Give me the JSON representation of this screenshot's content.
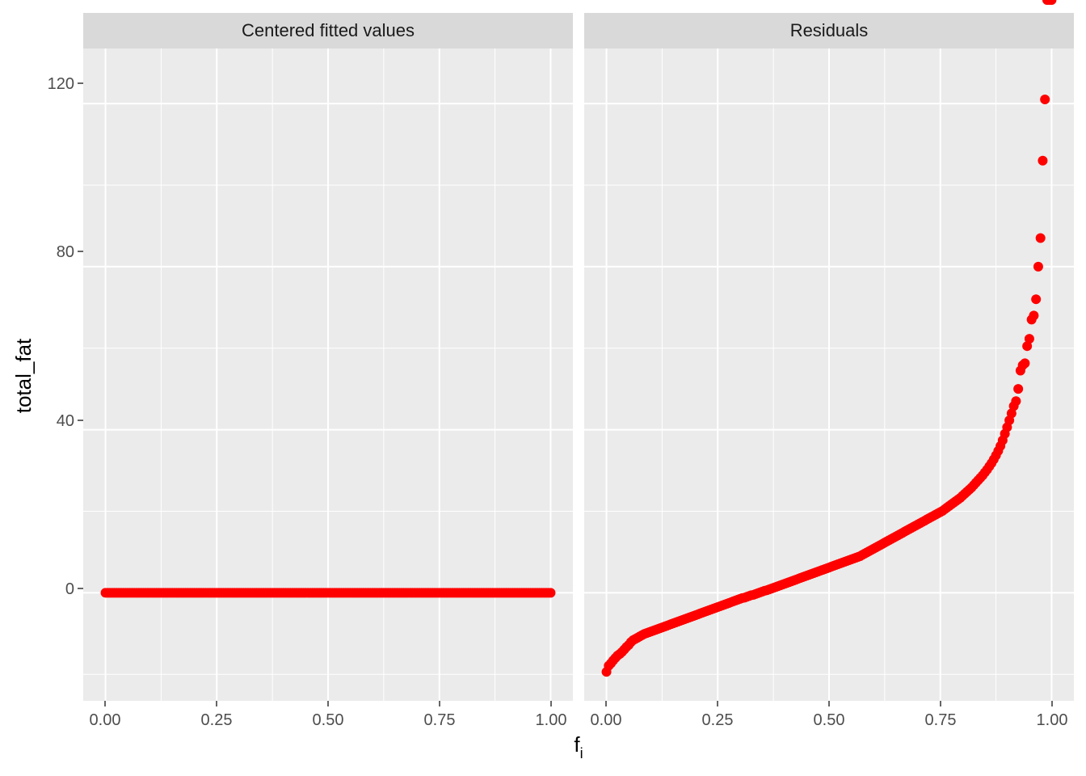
{
  "chart_data": {
    "type": "scatter",
    "facets": [
      "Centered fitted values",
      "Residuals"
    ],
    "xlabel": "f",
    "xlabel_subscript": "i",
    "ylabel": "total_fat",
    "x_ticks": [
      "0.00",
      "0.25",
      "0.50",
      "0.75",
      "1.00"
    ],
    "y_ticks": [
      "0",
      "40",
      "80",
      "120"
    ],
    "xlim": [
      -0.05,
      1.05
    ],
    "ylim": [
      -26.5,
      133.5
    ],
    "grid": true,
    "point_color": "#ff0000",
    "panel_background": "#ebebeb",
    "strip_background": "#d9d9d9",
    "series": [
      {
        "facet": "Centered fitted values",
        "f_values": [
          0.0,
          0.005,
          0.01,
          0.015,
          0.02,
          0.025,
          0.03,
          0.035,
          0.04,
          0.045,
          0.05,
          0.055,
          0.06,
          0.065,
          0.07,
          0.075,
          0.08,
          0.085,
          0.09,
          0.095,
          0.1,
          0.105,
          0.11,
          0.115,
          0.12,
          0.125,
          0.13,
          0.135,
          0.14,
          0.145,
          0.15,
          0.155,
          0.16,
          0.165,
          0.17,
          0.175,
          0.18,
          0.185,
          0.19,
          0.195,
          0.2,
          0.205,
          0.21,
          0.215,
          0.22,
          0.225,
          0.23,
          0.235,
          0.24,
          0.245,
          0.25,
          0.255,
          0.26,
          0.265,
          0.27,
          0.275,
          0.28,
          0.285,
          0.29,
          0.295,
          0.3,
          0.305,
          0.31,
          0.315,
          0.32,
          0.325,
          0.33,
          0.335,
          0.34,
          0.345,
          0.35,
          0.355,
          0.36,
          0.365,
          0.37,
          0.375,
          0.38,
          0.385,
          0.39,
          0.395,
          0.4,
          0.405,
          0.41,
          0.415,
          0.42,
          0.425,
          0.43,
          0.435,
          0.44,
          0.445,
          0.45,
          0.455,
          0.46,
          0.465,
          0.47,
          0.475,
          0.48,
          0.485,
          0.49,
          0.495,
          0.5,
          0.505,
          0.51,
          0.515,
          0.52,
          0.525,
          0.53,
          0.535,
          0.54,
          0.545,
          0.55,
          0.555,
          0.56,
          0.565,
          0.57,
          0.575,
          0.58,
          0.585,
          0.59,
          0.595,
          0.6,
          0.605,
          0.61,
          0.615,
          0.62,
          0.625,
          0.63,
          0.635,
          0.64,
          0.645,
          0.65,
          0.655,
          0.66,
          0.665,
          0.67,
          0.675,
          0.68,
          0.685,
          0.69,
          0.695,
          0.7,
          0.705,
          0.71,
          0.715,
          0.72,
          0.725,
          0.73,
          0.735,
          0.74,
          0.745,
          0.75,
          0.755,
          0.76,
          0.765,
          0.77,
          0.775,
          0.78,
          0.785,
          0.79,
          0.795,
          0.8,
          0.805,
          0.81,
          0.815,
          0.82,
          0.825,
          0.83,
          0.835,
          0.84,
          0.845,
          0.85,
          0.855,
          0.86,
          0.865,
          0.87,
          0.875,
          0.88,
          0.885,
          0.89,
          0.895,
          0.9,
          0.905,
          0.91,
          0.915,
          0.92,
          0.925,
          0.93,
          0.935,
          0.94,
          0.945,
          0.95,
          0.955,
          0.96,
          0.965,
          0.97,
          0.975,
          0.98,
          0.985,
          0.99,
          0.995,
          1.0
        ],
        "total_fat": [
          0,
          0,
          0,
          0,
          0,
          0,
          0,
          0,
          0,
          0,
          0,
          0,
          0,
          0,
          0,
          0,
          0,
          0,
          0,
          0,
          0,
          0,
          0,
          0,
          0,
          0,
          0,
          0,
          0,
          0,
          0,
          0,
          0,
          0,
          0,
          0,
          0,
          0,
          0,
          0,
          0,
          0,
          0,
          0,
          0,
          0,
          0,
          0,
          0,
          0,
          0,
          0,
          0,
          0,
          0,
          0,
          0,
          0,
          0,
          0,
          0,
          0,
          0,
          0,
          0,
          0,
          0,
          0,
          0,
          0,
          0,
          0,
          0,
          0,
          0,
          0,
          0,
          0,
          0,
          0,
          0,
          0,
          0,
          0,
          0,
          0,
          0,
          0,
          0,
          0,
          0,
          0,
          0,
          0,
          0,
          0,
          0,
          0,
          0,
          0,
          0,
          0,
          0,
          0,
          0,
          0,
          0,
          0,
          0,
          0,
          0,
          0,
          0,
          0,
          0,
          0,
          0,
          0,
          0,
          0,
          0,
          0,
          0,
          0,
          0,
          0,
          0,
          0,
          0,
          0,
          0,
          0,
          0,
          0,
          0,
          0,
          0,
          0,
          0,
          0,
          0,
          0,
          0,
          0,
          0,
          0,
          0,
          0,
          0,
          0,
          0,
          0,
          0,
          0,
          0,
          0,
          0,
          0,
          0,
          0,
          0,
          0,
          0,
          0,
          0,
          0,
          0,
          0,
          0,
          0,
          0,
          0,
          0,
          0,
          0,
          0,
          0,
          0,
          0,
          0,
          0,
          0,
          0,
          0,
          0,
          0,
          0,
          0,
          0,
          0,
          0,
          0,
          0,
          0,
          0,
          0,
          0,
          0,
          0,
          0,
          0
        ]
      },
      {
        "facet": "Residuals",
        "f_values": [
          0.0,
          0.005,
          0.01,
          0.015,
          0.02,
          0.025,
          0.03,
          0.035,
          0.04,
          0.045,
          0.05,
          0.055,
          0.06,
          0.065,
          0.07,
          0.075,
          0.08,
          0.085,
          0.09,
          0.095,
          0.1,
          0.105,
          0.11,
          0.115,
          0.12,
          0.125,
          0.13,
          0.135,
          0.14,
          0.145,
          0.15,
          0.155,
          0.16,
          0.165,
          0.17,
          0.175,
          0.18,
          0.185,
          0.19,
          0.195,
          0.2,
          0.205,
          0.21,
          0.215,
          0.22,
          0.225,
          0.23,
          0.235,
          0.24,
          0.245,
          0.25,
          0.255,
          0.26,
          0.265,
          0.27,
          0.275,
          0.28,
          0.285,
          0.29,
          0.295,
          0.3,
          0.305,
          0.31,
          0.315,
          0.32,
          0.325,
          0.33,
          0.335,
          0.34,
          0.345,
          0.35,
          0.355,
          0.36,
          0.365,
          0.37,
          0.375,
          0.38,
          0.385,
          0.39,
          0.395,
          0.4,
          0.405,
          0.41,
          0.415,
          0.42,
          0.425,
          0.43,
          0.435,
          0.44,
          0.445,
          0.45,
          0.455,
          0.46,
          0.465,
          0.47,
          0.475,
          0.48,
          0.485,
          0.49,
          0.495,
          0.5,
          0.505,
          0.51,
          0.515,
          0.52,
          0.525,
          0.53,
          0.535,
          0.54,
          0.545,
          0.55,
          0.555,
          0.56,
          0.565,
          0.57,
          0.575,
          0.58,
          0.585,
          0.59,
          0.595,
          0.6,
          0.605,
          0.61,
          0.615,
          0.62,
          0.625,
          0.63,
          0.635,
          0.64,
          0.645,
          0.65,
          0.655,
          0.66,
          0.665,
          0.67,
          0.675,
          0.68,
          0.685,
          0.69,
          0.695,
          0.7,
          0.705,
          0.71,
          0.715,
          0.72,
          0.725,
          0.73,
          0.735,
          0.74,
          0.745,
          0.75,
          0.755,
          0.76,
          0.765,
          0.77,
          0.775,
          0.78,
          0.785,
          0.79,
          0.795,
          0.8,
          0.805,
          0.81,
          0.815,
          0.82,
          0.825,
          0.83,
          0.835,
          0.84,
          0.845,
          0.85,
          0.855,
          0.86,
          0.865,
          0.87,
          0.875,
          0.88,
          0.885,
          0.89,
          0.895,
          0.9,
          0.905,
          0.91,
          0.915,
          0.92,
          0.925,
          0.93,
          0.935,
          0.94,
          0.945,
          0.95,
          0.955,
          0.96,
          0.965,
          0.97,
          0.975,
          0.98,
          0.985,
          0.99,
          0.995,
          1.0
        ],
        "total_fat": [
          -19.4,
          -17.9,
          -17.3,
          -16.6,
          -16.0,
          -15.4,
          -15.0,
          -14.5,
          -13.9,
          -13.3,
          -12.8,
          -12.1,
          -11.6,
          -11.3,
          -11.0,
          -10.7,
          -10.4,
          -10.1,
          -9.9,
          -9.7,
          -9.5,
          -9.3,
          -9.1,
          -8.9,
          -8.7,
          -8.5,
          -8.3,
          -8.1,
          -7.9,
          -7.7,
          -7.5,
          -7.3,
          -7.1,
          -6.9,
          -6.7,
          -6.5,
          -6.3,
          -6.1,
          -5.9,
          -5.7,
          -5.5,
          -5.3,
          -5.1,
          -4.9,
          -4.7,
          -4.5,
          -4.3,
          -4.1,
          -3.9,
          -3.7,
          -3.5,
          -3.3,
          -3.1,
          -2.9,
          -2.7,
          -2.5,
          -2.3,
          -2.1,
          -1.9,
          -1.7,
          -1.5,
          -1.3,
          -1.2,
          -1.0,
          -0.8,
          -0.6,
          -0.5,
          -0.3,
          -0.1,
          0.1,
          0.3,
          0.5,
          0.6,
          0.8,
          1.0,
          1.2,
          1.4,
          1.6,
          1.8,
          2.0,
          2.2,
          2.4,
          2.6,
          2.8,
          3.0,
          3.2,
          3.4,
          3.6,
          3.8,
          4.0,
          4.2,
          4.4,
          4.6,
          4.8,
          5.0,
          5.2,
          5.4,
          5.6,
          5.8,
          6.0,
          6.2,
          6.4,
          6.6,
          6.8,
          7.0,
          7.2,
          7.4,
          7.6,
          7.8,
          8.0,
          8.2,
          8.4,
          8.6,
          8.8,
          9.0,
          9.3,
          9.6,
          9.9,
          10.2,
          10.5,
          10.8,
          11.1,
          11.4,
          11.7,
          12.0,
          12.3,
          12.6,
          12.9,
          13.2,
          13.5,
          13.8,
          14.1,
          14.4,
          14.7,
          15.0,
          15.3,
          15.6,
          15.9,
          16.2,
          16.5,
          16.8,
          17.1,
          17.4,
          17.7,
          18.0,
          18.3,
          18.6,
          18.9,
          19.2,
          19.5,
          19.8,
          20.1,
          20.5,
          20.9,
          21.3,
          21.7,
          22.1,
          22.5,
          22.9,
          23.3,
          23.8,
          24.3,
          24.8,
          25.3,
          25.8,
          26.4,
          27.0,
          27.6,
          28.2,
          28.8,
          29.5,
          30.2,
          31.0,
          31.8,
          32.7,
          33.7,
          34.8,
          36.0,
          37.4,
          39.0,
          40.6,
          42.3,
          44.0,
          45.8,
          47.0,
          50.0,
          54.5,
          55.8,
          56.3,
          60.5,
          62.3,
          67.0,
          68.0,
          72.0,
          80.0,
          87.0,
          106.0,
          121.0
        ]
      }
    ]
  }
}
